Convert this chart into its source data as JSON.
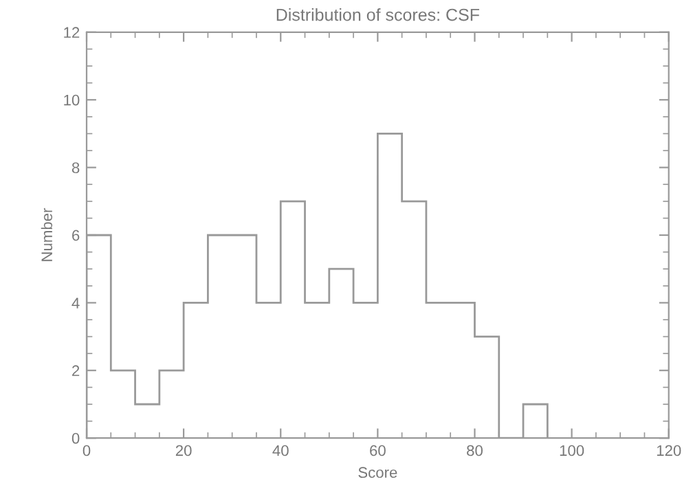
{
  "chart_data": {
    "type": "histogram",
    "title": "Distribution of scores: CSF",
    "xlabel": "Score",
    "ylabel": "Number",
    "bins": [
      0,
      5,
      10,
      15,
      20,
      25,
      30,
      35,
      40,
      45,
      50,
      55,
      60,
      65,
      70,
      75,
      80,
      85,
      90,
      95
    ],
    "values": [
      6,
      2,
      1,
      2,
      4,
      6,
      6,
      4,
      7,
      4,
      5,
      4,
      9,
      7,
      4,
      4,
      3,
      0,
      1
    ],
    "color": "#999999",
    "xlim": [
      0,
      120
    ],
    "xticks": [
      0,
      20,
      40,
      60,
      80,
      100,
      120
    ],
    "ylim": [
      0,
      12
    ],
    "yticks": [
      0,
      2,
      4,
      6,
      8,
      10,
      12
    ],
    "grid": false,
    "legend": false
  }
}
